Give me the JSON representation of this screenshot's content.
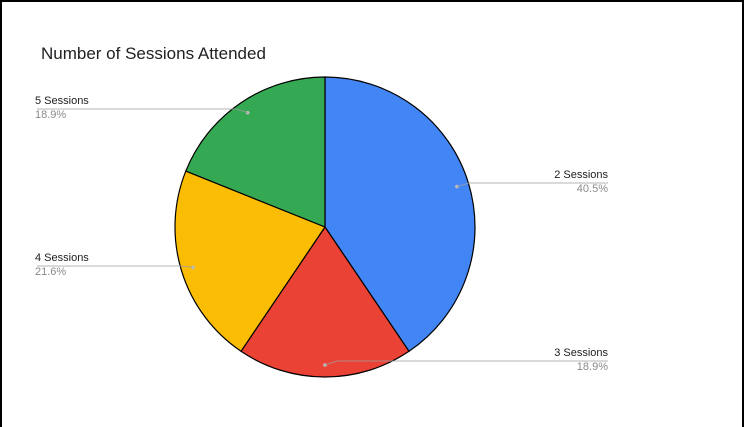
{
  "chart_data": {
    "type": "pie",
    "title": "Number of Sessions Attended",
    "slices": [
      {
        "label": "2 Sessions",
        "value": 40.5,
        "pct_label": "40.5%",
        "color": "#4285f4"
      },
      {
        "label": "3 Sessions",
        "value": 18.9,
        "pct_label": "18.9%",
        "color": "#ea4335"
      },
      {
        "label": "4 Sessions",
        "value": 21.6,
        "pct_label": "21.6%",
        "color": "#fbbc04"
      },
      {
        "label": "5 Sessions",
        "value": 18.9,
        "pct_label": "18.9%",
        "color": "#34a853"
      }
    ],
    "start_angle": "12 o'clock",
    "direction": "clockwise",
    "legend": "labeled slices"
  }
}
